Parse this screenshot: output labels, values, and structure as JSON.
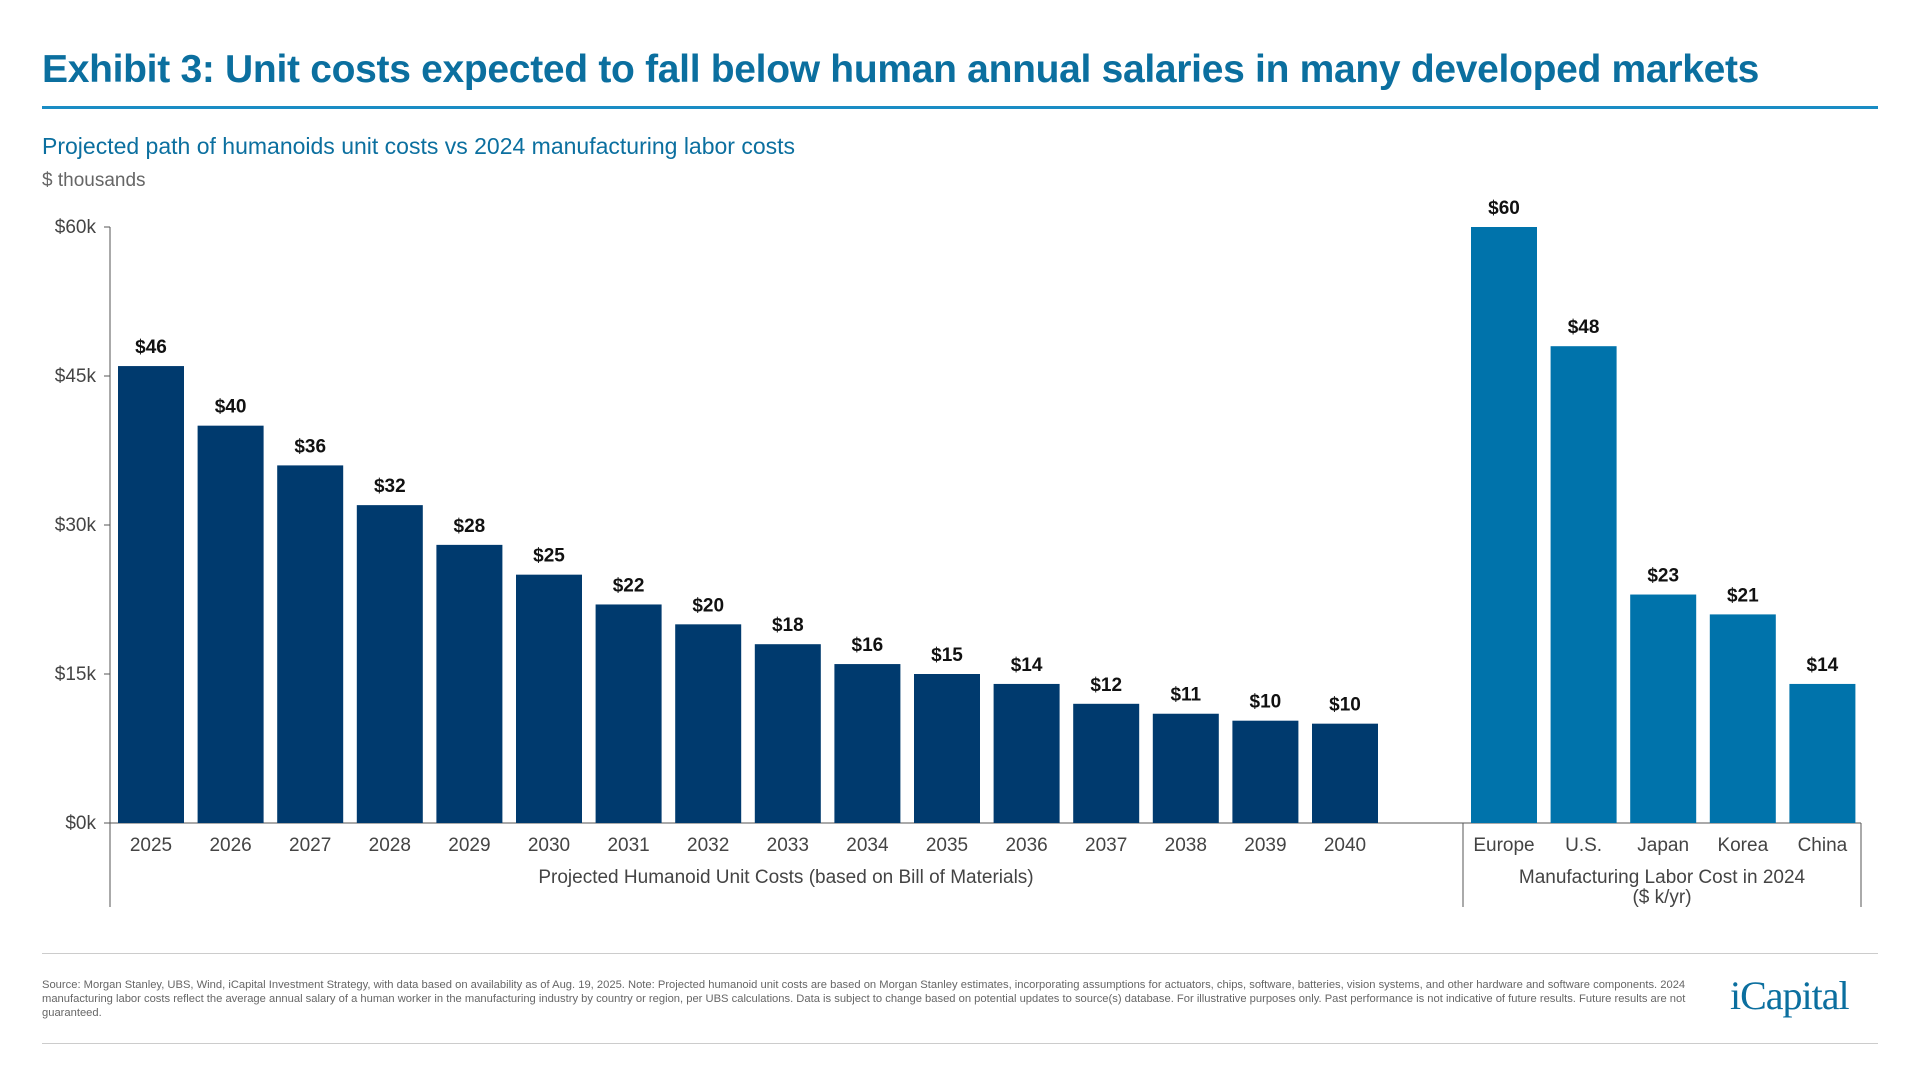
{
  "title": "Exhibit 3: Unit costs expected to fall below human annual salaries in many developed markets",
  "subtitle": "Projected path of humanoids unit costs vs 2024 manufacturing labor costs",
  "unit_label": "$ thousands",
  "source": "Source: Morgan Stanley, UBS, Wind, iCapital Investment Strategy, with data based on availability as of Aug. 19, 2025. Note: Projected humanoid unit costs are based on Morgan Stanley estimates, incorporating assumptions for actuators, chips, software, batteries, vision systems, and other hardware and software components. 2024 manufacturing labor costs reflect the average annual salary of a human worker in the manufacturing industry by country or region, per UBS calculations. Data is subject to change based on potential updates to source(s) database. For illustrative purposes only. Past performance is not indicative of future results. Future results are not guaranteed.",
  "logo": "iCapital",
  "colors": {
    "humanoid": "#003a6e",
    "labor": "#0073ab",
    "title": "#0b6f9f"
  },
  "chart_data": {
    "type": "bar",
    "ylim": [
      0,
      60
    ],
    "yticks": [
      0,
      15,
      30,
      45,
      60
    ],
    "ytick_labels": [
      "$0k",
      "$15k",
      "$30k",
      "$45k",
      "$60k"
    ],
    "grid": false,
    "groups": [
      {
        "label": "Projected Humanoid Unit Costs (based on Bill of Materials)",
        "categories": [
          "2025",
          "2026",
          "2027",
          "2028",
          "2029",
          "2030",
          "2031",
          "2032",
          "2033",
          "2034",
          "2035",
          "2036",
          "2037",
          "2038",
          "2039",
          "2040"
        ],
        "values": [
          46,
          40,
          36,
          32,
          28,
          25,
          22,
          20,
          18,
          16,
          15,
          14,
          12,
          11,
          10.3,
          10
        ],
        "data_labels": [
          "$46",
          "$40",
          "$36",
          "$32",
          "$28",
          "$25",
          "$22",
          "$20",
          "$18",
          "$16",
          "$15",
          "$14",
          "$12",
          "$11",
          "$10",
          "$10"
        ]
      },
      {
        "label": "Manufacturing Labor Cost in 2024",
        "label2": "($ k/yr)",
        "categories": [
          "Europe",
          "U.S.",
          "Japan",
          "Korea",
          "China"
        ],
        "values": [
          60,
          48,
          23,
          21,
          14
        ],
        "data_labels": [
          "$60",
          "$48",
          "$23",
          "$21",
          "$14"
        ]
      }
    ]
  }
}
